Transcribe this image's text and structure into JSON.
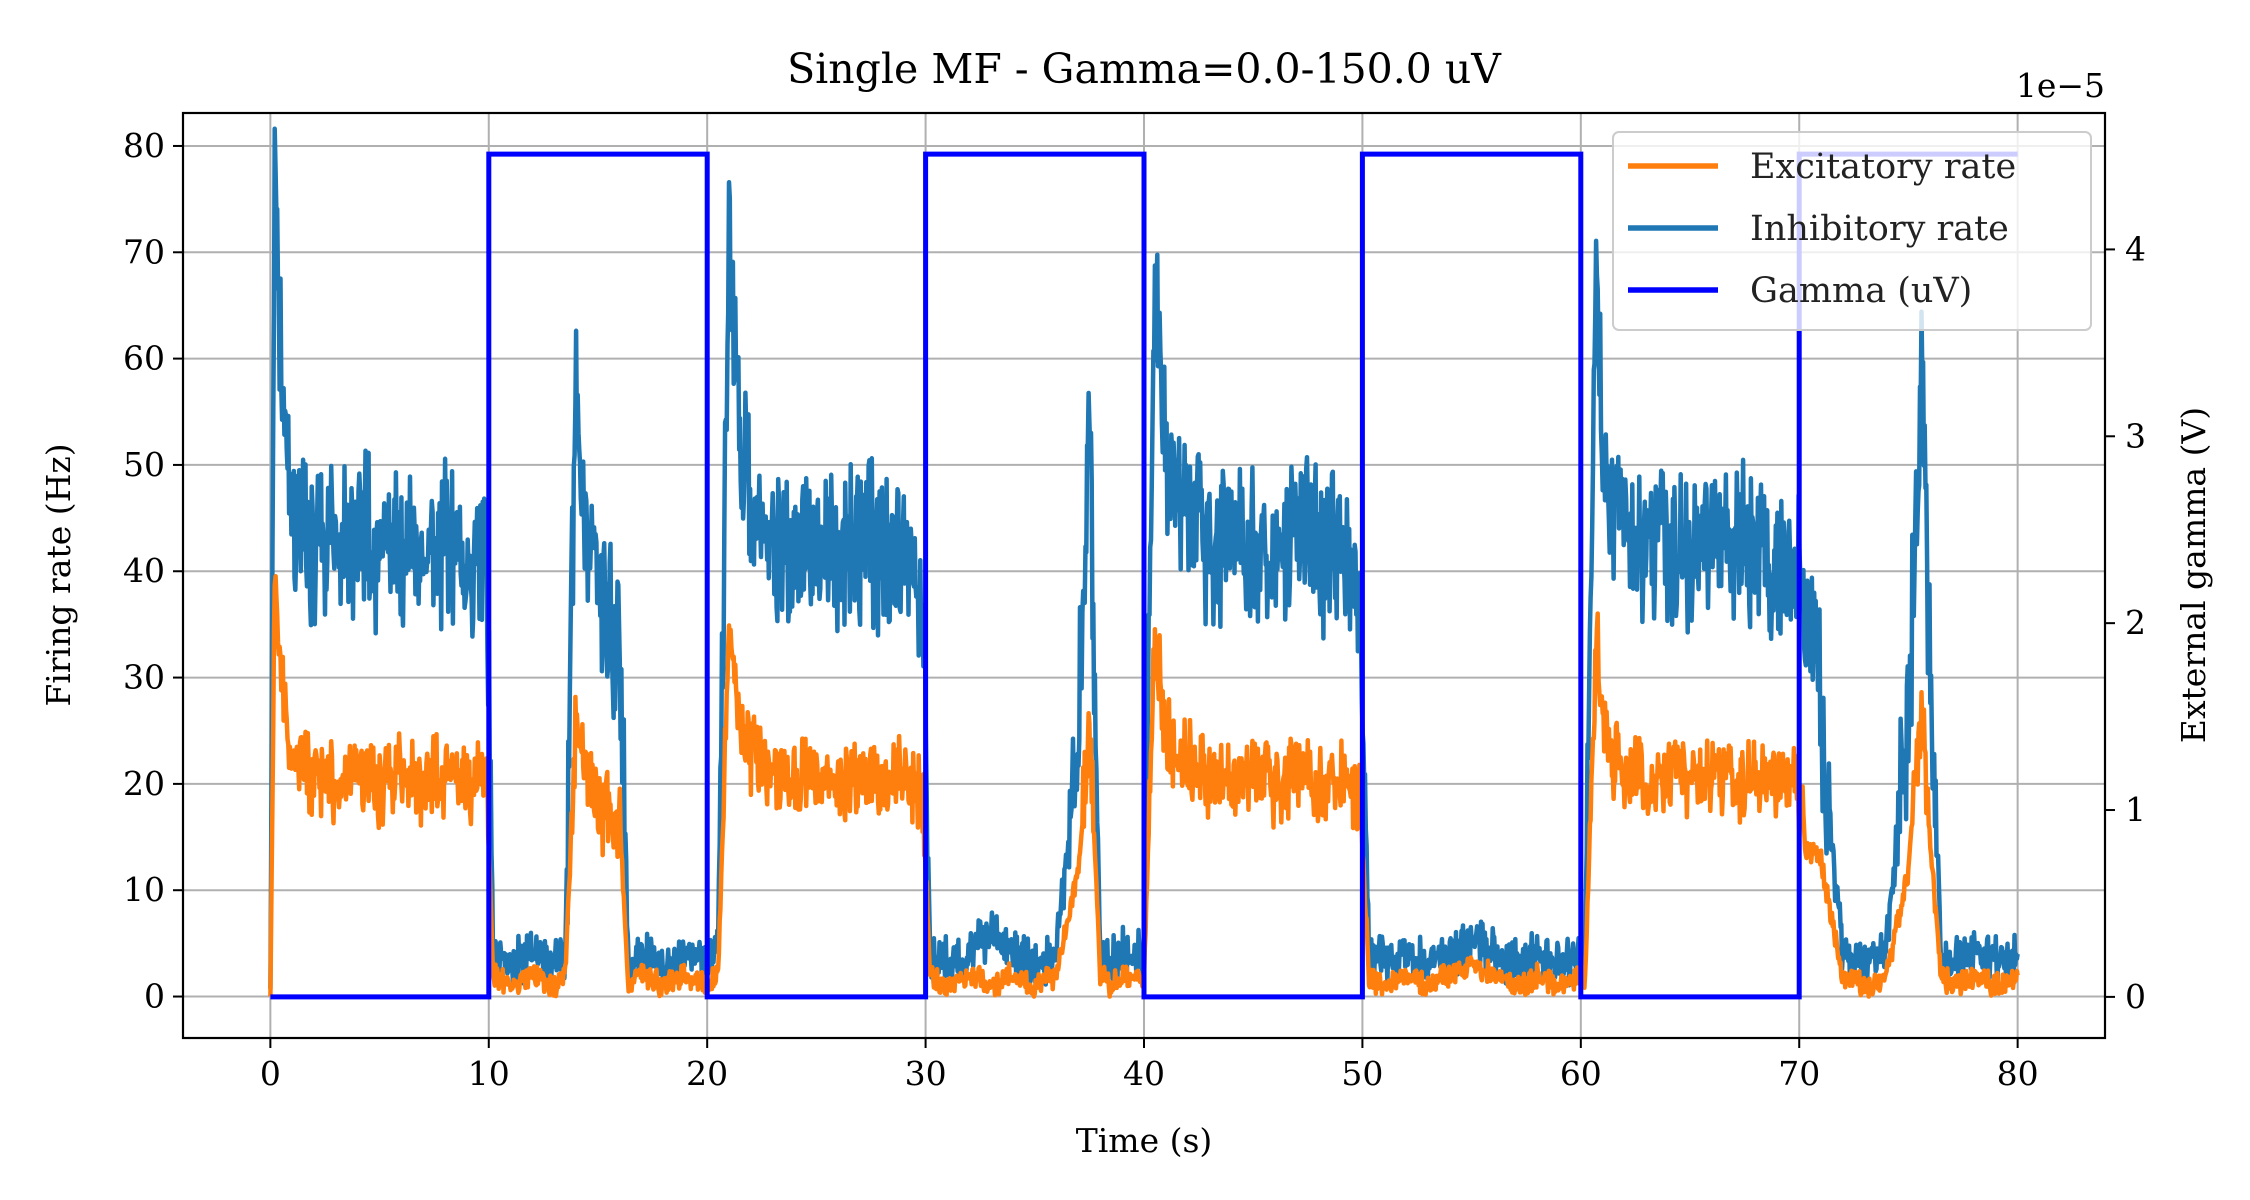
{
  "chart_data": {
    "type": "line",
    "title": "Single MF - Gamma=0.0-150.0 uV",
    "xlabel": "Time (s)",
    "ylabel": "Firing rate (Hz)",
    "y2label": "External gamma (V)",
    "y2_offset_label": "1e−5",
    "xlim": [
      -4,
      84
    ],
    "ylim": [
      -3.9,
      83.1
    ],
    "y2lim": [
      -2.2e-06,
      4.73e-05
    ],
    "xticks": [
      0,
      10,
      20,
      30,
      40,
      50,
      60,
      70,
      80
    ],
    "yticks": [
      0,
      10,
      20,
      30,
      40,
      50,
      60,
      70,
      80
    ],
    "y2ticks": [
      0,
      1,
      2,
      3,
      4
    ],
    "y2tick_scale": 1e-05,
    "grid": true,
    "legend_position": "top-right",
    "colors": {
      "excitatory": "#ff7f0e",
      "inhibitory": "#1f77b4",
      "gamma": "#0000ff"
    },
    "gamma_series": {
      "name": "Gamma (uV)",
      "axis": "right",
      "x": [
        0,
        10,
        10,
        20,
        20,
        30,
        30,
        40,
        40,
        50,
        50,
        60,
        60,
        70,
        70,
        80
      ],
      "values": [
        0,
        0,
        4.51e-05,
        4.51e-05,
        0,
        0,
        4.51e-05,
        4.51e-05,
        0,
        0,
        4.51e-05,
        4.51e-05,
        0,
        0,
        4.51e-05,
        4.51e-05
      ]
    },
    "series": [
      {
        "name": "Excitatory rate",
        "x": [
          0,
          0.2,
          0.5,
          1,
          2,
          3,
          4,
          5,
          6,
          7,
          8,
          9,
          9.9,
          10.2,
          11,
          12,
          13,
          13.5,
          14,
          14.5,
          15,
          16,
          16.4,
          17,
          18,
          19,
          19.9,
          20.5,
          21,
          21.5,
          22,
          23,
          24,
          25,
          26,
          27,
          28,
          29,
          29.9,
          30.2,
          31,
          32,
          33,
          34,
          35,
          36,
          37,
          37.5,
          38,
          38.5,
          39,
          40,
          40.5,
          41,
          42,
          43,
          44,
          45,
          46,
          47,
          48,
          49,
          49.9,
          50.3,
          51,
          52,
          53,
          54,
          55,
          56,
          57,
          58,
          59,
          59.9,
          60.2,
          60.7,
          61,
          61.5,
          62,
          63,
          64,
          65,
          66,
          67,
          68,
          69,
          69.9,
          70.3,
          71,
          71.5,
          72,
          73,
          74,
          75,
          75.6,
          76,
          76.5,
          77,
          78,
          79,
          80
        ],
        "values": [
          0,
          38,
          30,
          22,
          21,
          20,
          21,
          20,
          21,
          20,
          21,
          20,
          21,
          2,
          1,
          2,
          1,
          2,
          26,
          20,
          18,
          16,
          1,
          2,
          1,
          2,
          1,
          2,
          35,
          25,
          23,
          21,
          20,
          21,
          20,
          21,
          20,
          21,
          18,
          2,
          1,
          2,
          1,
          2,
          1,
          2,
          12,
          26,
          2,
          1,
          2,
          2,
          34,
          24,
          22,
          21,
          20,
          21,
          20,
          21,
          20,
          21,
          18,
          2,
          1,
          2,
          1,
          2,
          3,
          2,
          1,
          2,
          1,
          2,
          1,
          34,
          26,
          22,
          21,
          20,
          21,
          20,
          21,
          20,
          21,
          20,
          20,
          14,
          13,
          7,
          2,
          1,
          2,
          12,
          28,
          14,
          2,
          1,
          2,
          1,
          2
        ]
      },
      {
        "name": "Inhibitory rate",
        "x": [
          0,
          0.2,
          0.5,
          1,
          2,
          3,
          4,
          5,
          6,
          7,
          8,
          9,
          9.9,
          10.2,
          11,
          12,
          13,
          13.5,
          14,
          14.5,
          15,
          16,
          16.4,
          17,
          18,
          19,
          19.9,
          20.5,
          21,
          21.5,
          22,
          23,
          24,
          25,
          26,
          27,
          28,
          29,
          29.9,
          30.2,
          31,
          32,
          33,
          34,
          35,
          36,
          37,
          37.5,
          38,
          38.5,
          39,
          40,
          40.5,
          41,
          42,
          43,
          44,
          45,
          46,
          47,
          48,
          49,
          49.9,
          50.3,
          51,
          52,
          53,
          54,
          55,
          56,
          57,
          58,
          59,
          59.9,
          60.2,
          60.7,
          61,
          61.5,
          62,
          63,
          64,
          65,
          66,
          67,
          68,
          69,
          69.9,
          70.3,
          71,
          71.5,
          72,
          73,
          74,
          75,
          75.6,
          76,
          76.5,
          77,
          78,
          79,
          80
        ],
        "values": [
          0,
          78,
          60,
          45,
          43,
          42,
          44,
          42,
          43,
          41,
          43,
          40,
          42,
          4,
          3,
          4,
          3,
          4,
          57,
          42,
          38,
          32,
          3,
          4,
          3,
          4,
          3,
          4,
          72,
          52,
          46,
          43,
          42,
          43,
          41,
          43,
          42,
          43,
          36,
          4,
          3,
          4,
          6,
          4,
          3,
          4,
          25,
          55,
          4,
          3,
          4,
          4,
          70,
          50,
          45,
          43,
          42,
          43,
          41,
          43,
          42,
          43,
          36,
          4,
          3,
          4,
          3,
          4,
          6,
          4,
          3,
          4,
          3,
          4,
          3,
          71,
          52,
          45,
          43,
          42,
          43,
          42,
          43,
          42,
          43,
          41,
          42,
          38,
          28,
          14,
          4,
          3,
          5,
          25,
          60,
          30,
          4,
          3,
          4,
          3,
          4
        ]
      }
    ]
  }
}
